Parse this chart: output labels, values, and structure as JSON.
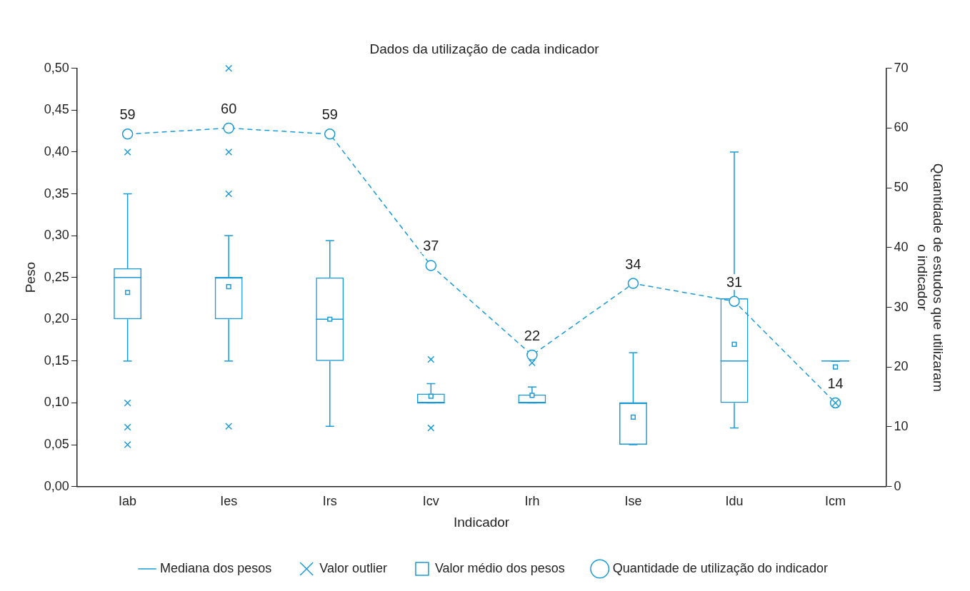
{
  "chart_data": {
    "type": "box",
    "title": "Dados da utilização de cada indicador",
    "xlabel": "Indicador",
    "ylabel": "Peso",
    "y2label": "Quantidade de estudos que utilizaram o indicador",
    "categories": [
      "Iab",
      "Ies",
      "Irs",
      "Icv",
      "Irh",
      "Ise",
      "Idu",
      "Icm"
    ],
    "ylim": [
      0,
      0.5
    ],
    "yticks": [
      {
        "value": 0,
        "label": "0,00"
      },
      {
        "value": 0.05,
        "label": "0,05"
      },
      {
        "value": 0.1,
        "label": "0,10"
      },
      {
        "value": 0.15,
        "label": "0,15"
      },
      {
        "value": 0.2,
        "label": "0,20"
      },
      {
        "value": 0.25,
        "label": "0,25"
      },
      {
        "value": 0.3,
        "label": "0,30"
      },
      {
        "value": 0.35,
        "label": "0,35"
      },
      {
        "value": 0.4,
        "label": "0,40"
      },
      {
        "value": 0.45,
        "label": "0,45"
      },
      {
        "value": 0.5,
        "label": "0,50"
      }
    ],
    "y2lim": [
      0,
      70
    ],
    "y2ticks": [
      0,
      10,
      20,
      30,
      40,
      50,
      60,
      70
    ],
    "grid": false,
    "legend": "bottom",
    "series": [
      {
        "name": "Mediana dos pesos",
        "color": "#1a9ad6",
        "boxes": [
          {
            "low": 0.15,
            "q1": 0.2,
            "median": 0.25,
            "q3": 0.261,
            "high": 0.35
          },
          {
            "low": 0.15,
            "q1": 0.2,
            "median": 0.25,
            "q3": 0.25,
            "high": 0.3
          },
          {
            "low": 0.072,
            "q1": 0.15,
            "median": 0.2,
            "q3": 0.25,
            "high": 0.294
          },
          {
            "low": 0.1,
            "q1": 0.1,
            "median": 0.1,
            "q3": 0.111,
            "high": 0.123
          },
          {
            "low": 0.1,
            "q1": 0.1,
            "median": 0.1,
            "q3": 0.11,
            "high": 0.119
          },
          {
            "low": 0.05,
            "q1": 0.05,
            "median": 0.1,
            "q3": 0.1,
            "high": 0.16
          },
          {
            "low": 0.07,
            "q1": 0.1,
            "median": 0.15,
            "q3": 0.225,
            "high": 0.4
          },
          {
            "low": 0.15,
            "q1": 0.15,
            "median": 0.15,
            "q3": 0.15,
            "high": 0.15
          }
        ]
      },
      {
        "name": "Valor outlier",
        "type": "scatter",
        "color": "#1a9ad6",
        "marker": "cross",
        "x": [
          "Iab",
          "Iab",
          "Iab",
          "Iab",
          "Ies",
          "Ies",
          "Ies",
          "Ies",
          "Icv",
          "Icv",
          "Irh",
          "Icm"
        ],
        "values": [
          0.4,
          0.1,
          0.071,
          0.05,
          0.5,
          0.4,
          0.35,
          0.072,
          0.152,
          0.07,
          0.148,
          0.1
        ]
      },
      {
        "name": "Valor médio dos pesos",
        "type": "scatter",
        "color": "#1a9ad6",
        "marker": "square",
        "x": [
          "Iab",
          "Ies",
          "Irs",
          "Icv",
          "Irh",
          "Ise",
          "Idu",
          "Icm"
        ],
        "values": [
          0.232,
          0.239,
          0.2,
          0.108,
          0.109,
          0.083,
          0.17,
          0.143
        ]
      },
      {
        "name": "Quantidade de utilização do indicador",
        "type": "line",
        "axis": "y2",
        "color": "#1a9ad6",
        "marker": "circle",
        "line_style": "dashed",
        "values": [
          59,
          60,
          59,
          37,
          22,
          34,
          31,
          14
        ],
        "value_labels": [
          "59",
          "60",
          "59",
          "37",
          "22",
          "34",
          "31",
          "14"
        ]
      }
    ]
  }
}
